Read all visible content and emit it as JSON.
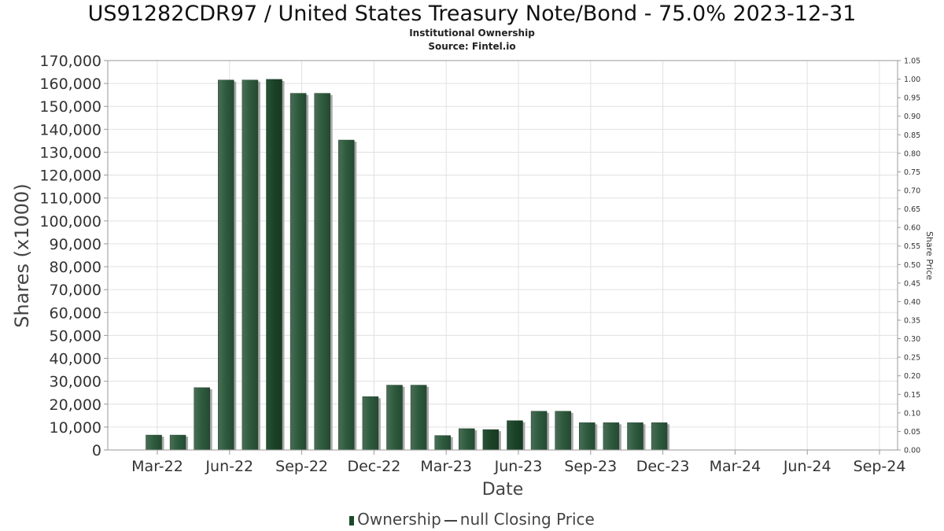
{
  "header": {
    "title": "US91282CDR97 / United States Treasury Note/Bond - 75.0% 2023-12-31",
    "subtitle": "Institutional Ownership",
    "source": "Source: Fintel.io"
  },
  "legend": {
    "ownership_label": "Ownership",
    "price_label": "null Closing Price"
  },
  "colors": {
    "bar": "#2d5a3d",
    "bar_dark": "#1a4a2a",
    "bar_shadow": "#a8a8a8",
    "grid": "#e0e0e0"
  },
  "chart_data": {
    "type": "bar",
    "xlabel": "Date",
    "ylabel": "Shares (x1000)",
    "y2label": "Share Price",
    "ylim": [
      0,
      170000
    ],
    "y2lim": [
      0,
      1.05
    ],
    "yticks": [
      "0",
      "10,000",
      "20,000",
      "30,000",
      "40,000",
      "50,000",
      "60,000",
      "70,000",
      "80,000",
      "90,000",
      "100,000",
      "110,000",
      "120,000",
      "130,000",
      "140,000",
      "150,000",
      "160,000",
      "170,000"
    ],
    "y2ticks": [
      "0.00",
      "0.05",
      "0.10",
      "0.15",
      "0.20",
      "0.25",
      "0.30",
      "0.35",
      "0.40",
      "0.45",
      "0.50",
      "0.55",
      "0.60",
      "0.65",
      "0.70",
      "0.75",
      "0.80",
      "0.85",
      "0.90",
      "0.95",
      "1.00",
      "1.05"
    ],
    "xticks": [
      "Mar-22",
      "Jun-22",
      "Sep-22",
      "Dec-22",
      "Mar-23",
      "Jun-23",
      "Sep-23",
      "Dec-23",
      "Mar-24",
      "Jun-24",
      "Sep-24"
    ],
    "grid": true,
    "legend_position": "bottom",
    "series": [
      {
        "name": "Ownership",
        "values": [
          6500,
          6500,
          27200,
          161500,
          161500,
          161800,
          155700,
          155700,
          135300,
          23300,
          28300,
          28300,
          6300,
          9300,
          8900,
          12800,
          16900,
          16900,
          11900,
          11900,
          11900,
          11900
        ],
        "dark": [
          false,
          false,
          false,
          false,
          false,
          true,
          false,
          false,
          false,
          false,
          false,
          false,
          false,
          false,
          true,
          true,
          false,
          false,
          false,
          false,
          false,
          false
        ]
      }
    ]
  }
}
